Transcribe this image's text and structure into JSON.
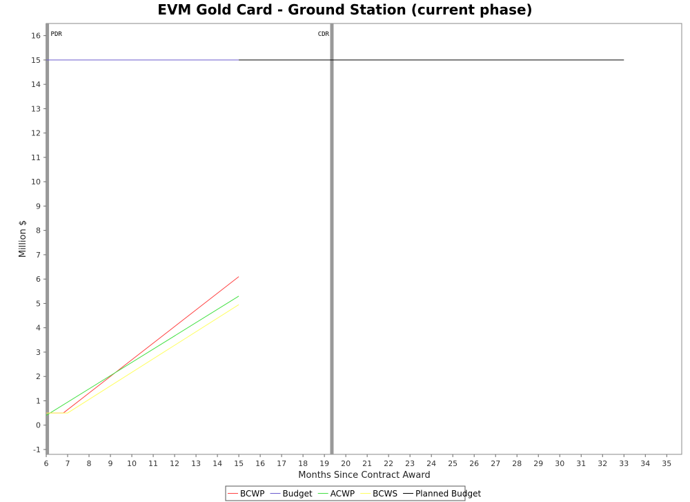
{
  "chart_data": {
    "type": "line",
    "title": "EVM Gold Card - Ground Station (current phase)",
    "xlabel": "Months Since Contract Award",
    "ylabel": "Million $",
    "xlim": [
      6,
      35.7
    ],
    "ylim": [
      -1.2,
      16.5
    ],
    "xticks": [
      6,
      7,
      8,
      9,
      10,
      11,
      12,
      13,
      14,
      15,
      16,
      17,
      18,
      19,
      20,
      21,
      22,
      23,
      24,
      25,
      26,
      27,
      28,
      29,
      30,
      31,
      32,
      33,
      34,
      35
    ],
    "yticks": [
      -1,
      0,
      1,
      2,
      3,
      4,
      5,
      6,
      7,
      8,
      9,
      10,
      11,
      12,
      13,
      14,
      15,
      16
    ],
    "grid": false,
    "legend_position": "bottom-center",
    "markers": [
      {
        "label": "PDR",
        "x": 6.05
      },
      {
        "label": "CDR",
        "x": 19.35
      }
    ],
    "series": [
      {
        "name": "BCWP",
        "color": "#ff4040",
        "points": [
          [
            6,
            0.5
          ],
          [
            6.8,
            0.5
          ],
          [
            15,
            6.1
          ]
        ]
      },
      {
        "name": "Budget",
        "color": "#6a5acd",
        "points": [
          [
            6,
            15
          ],
          [
            15,
            15
          ]
        ]
      },
      {
        "name": "ACWP",
        "color": "#40e040",
        "points": [
          [
            6,
            0.4
          ],
          [
            15,
            5.3
          ]
        ]
      },
      {
        "name": "BCWS",
        "color": "#ffff60",
        "points": [
          [
            6,
            0.5
          ],
          [
            7,
            0.5
          ],
          [
            15,
            4.95
          ]
        ]
      },
      {
        "name": "Planned Budget",
        "color": "#000000",
        "points": [
          [
            15,
            15
          ],
          [
            33,
            15
          ]
        ]
      }
    ]
  }
}
